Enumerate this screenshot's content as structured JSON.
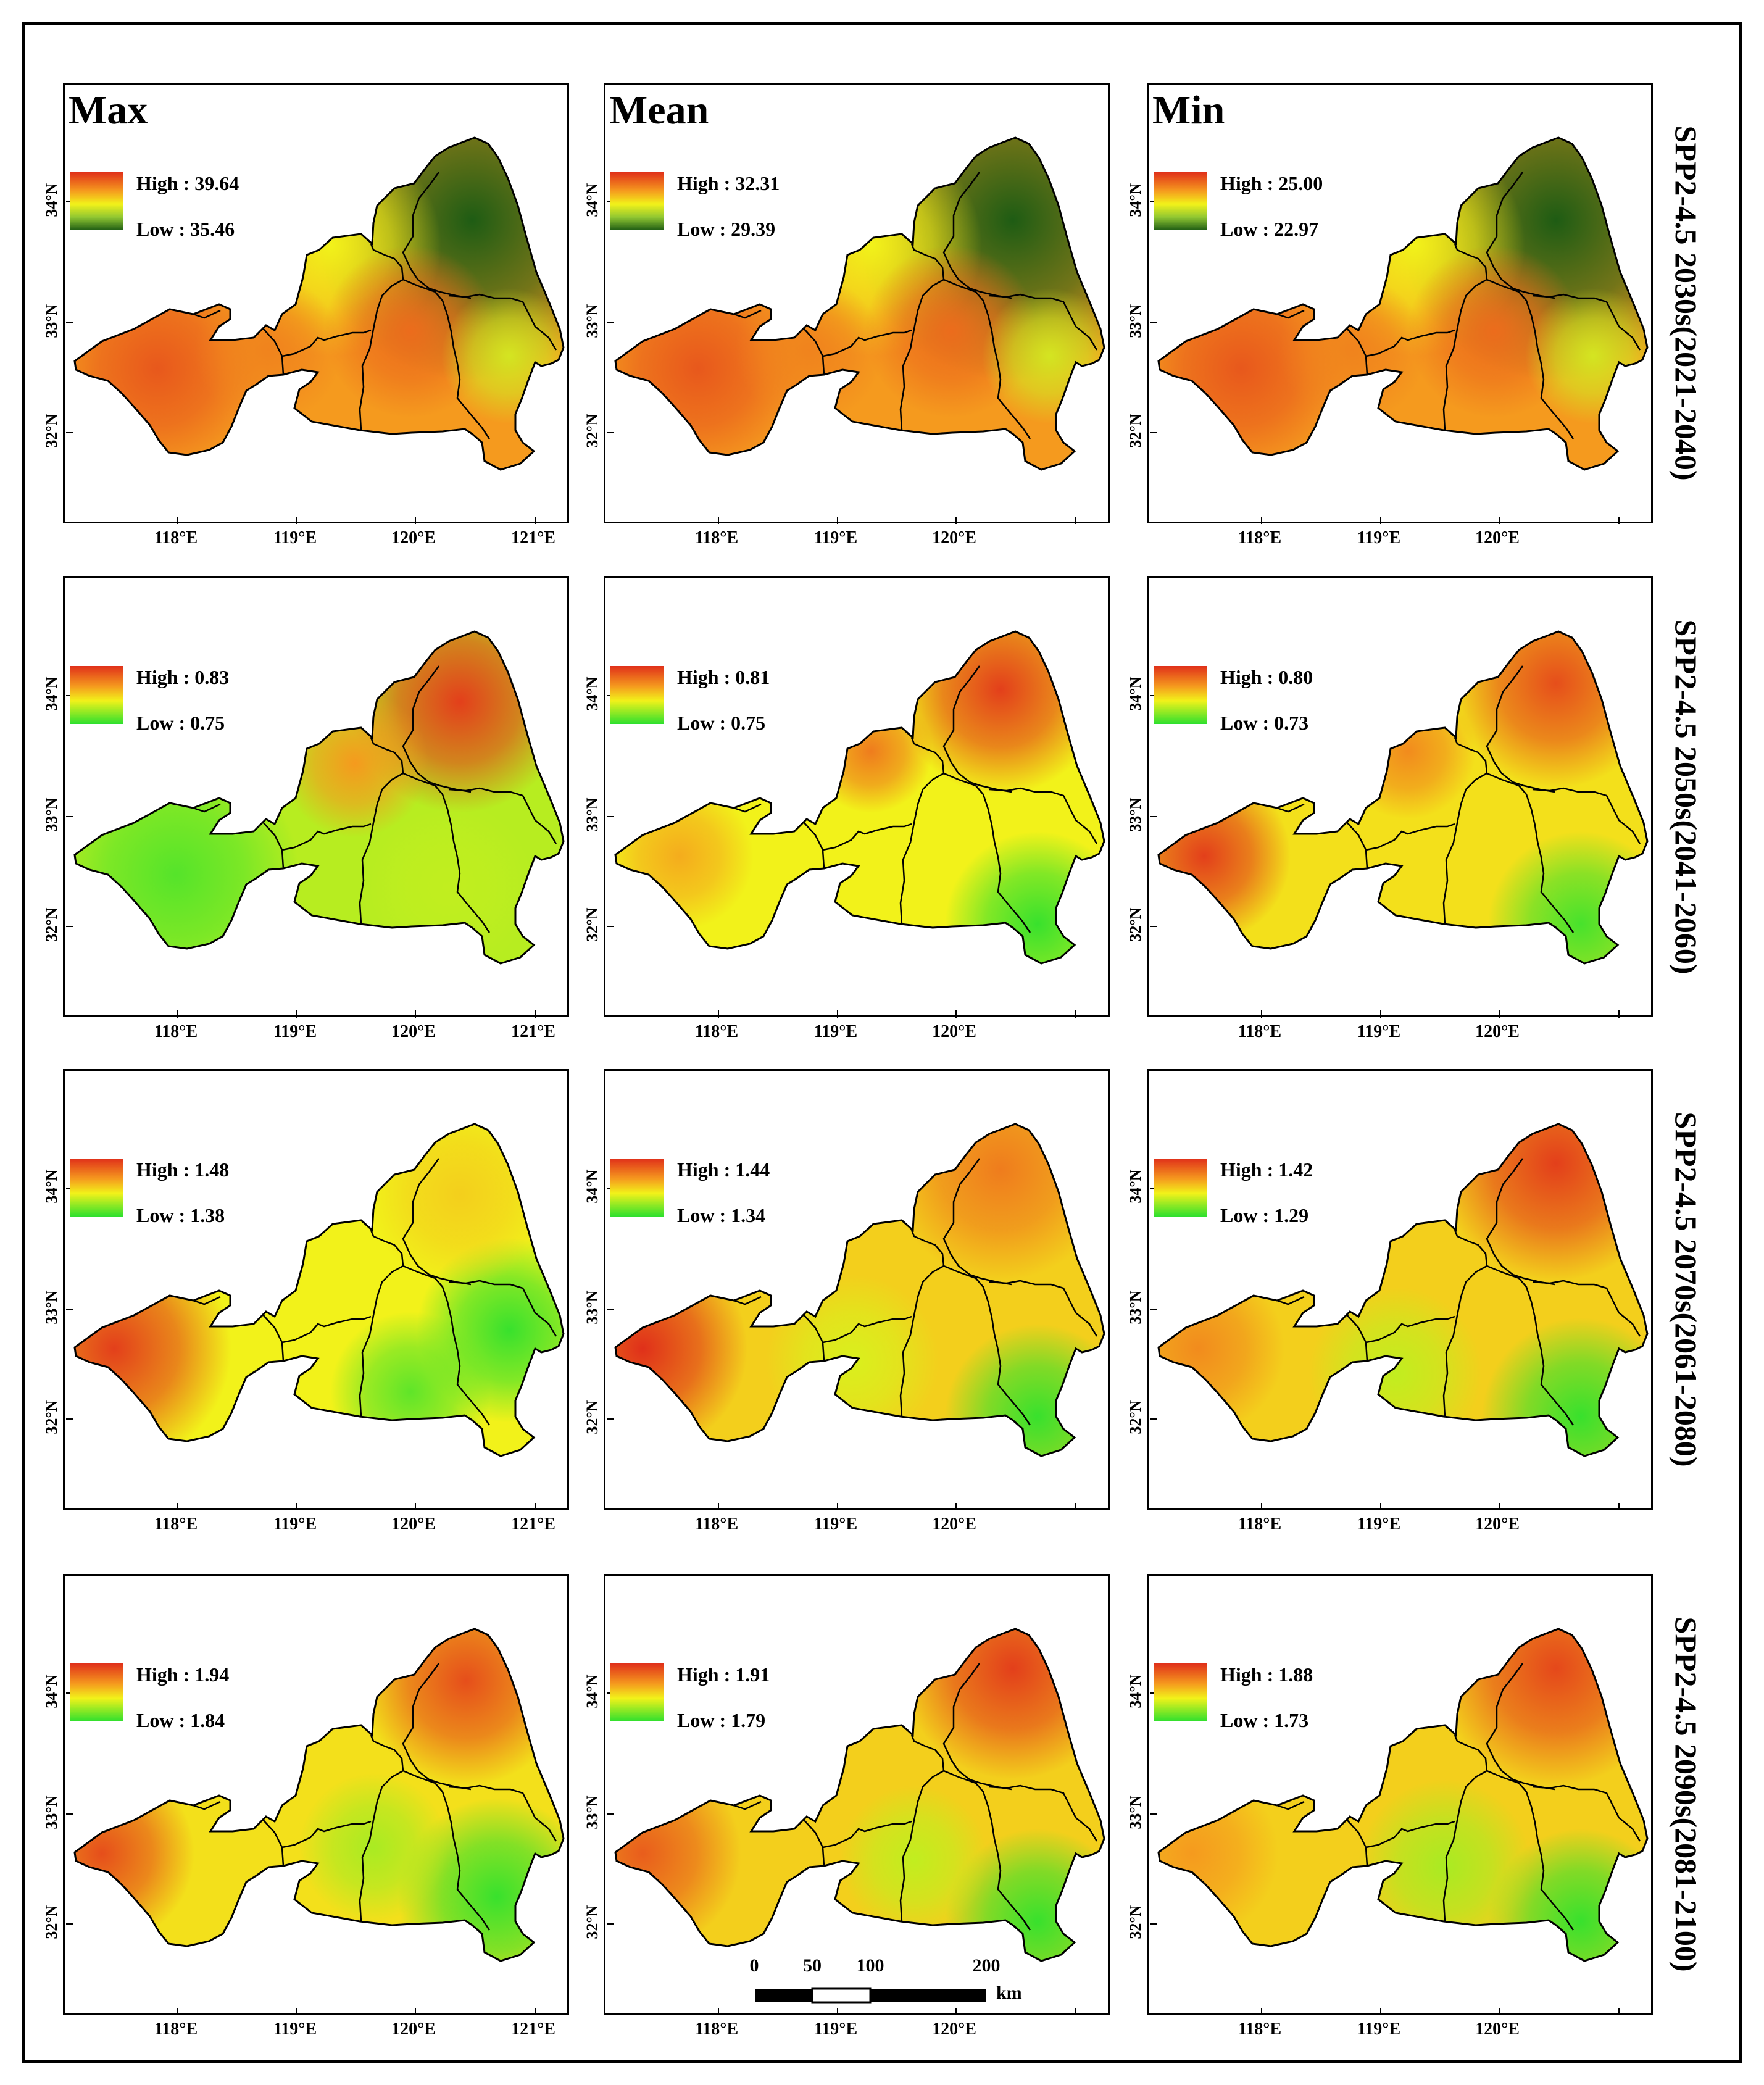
{
  "figure": {
    "column_titles": [
      "Max",
      "Mean",
      "Min"
    ],
    "row_titles": [
      "SPP2-4.5 2030s(2021-2040)",
      "SPP2-4.5 2050s(2041-2060)",
      "SPP2-4.5 2070s(2061-2080)",
      "SPP2-4.5 2090s(2081-2100)"
    ],
    "lat_ticks": [
      "32°N",
      "33°N",
      "34°N"
    ],
    "lon_ticks_full": [
      "118°E",
      "119°E",
      "120°E",
      "121°E"
    ],
    "lon_ticks": [
      "118°E",
      "119°E",
      "120°E"
    ],
    "scale_bar": {
      "ticks": [
        "0",
        "50",
        "100",
        "200"
      ],
      "unit": "km"
    }
  },
  "colors": {
    "green_dark": "#1e5c14",
    "green_bright": "#2ee02e",
    "yellow": "#f2f21a",
    "orange": "#f59a1e",
    "red": "#e02a1a",
    "boundary": "#000000"
  },
  "panels": [
    {
      "col": "Max",
      "row": 0,
      "high": "High : 39.64",
      "low": "Low : 35.46",
      "ramp": "temp"
    },
    {
      "col": "Mean",
      "row": 0,
      "high": "High : 32.31",
      "low": "Low : 29.39",
      "ramp": "temp"
    },
    {
      "col": "Min",
      "row": 0,
      "high": "High : 25.00",
      "low": "Low : 22.97",
      "ramp": "temp"
    },
    {
      "col": "Max",
      "row": 1,
      "high": "High : 0.83",
      "low": "Low : 0.75",
      "ramp": "change"
    },
    {
      "col": "Mean",
      "row": 1,
      "high": "High : 0.81",
      "low": "Low : 0.75",
      "ramp": "change"
    },
    {
      "col": "Min",
      "row": 1,
      "high": "High : 0.80",
      "low": "Low : 0.73",
      "ramp": "change"
    },
    {
      "col": "Max",
      "row": 2,
      "high": "High : 1.48",
      "low": "Low : 1.38",
      "ramp": "change"
    },
    {
      "col": "Mean",
      "row": 2,
      "high": "High : 1.44",
      "low": "Low : 1.34",
      "ramp": "change"
    },
    {
      "col": "Min",
      "row": 2,
      "high": "High : 1.42",
      "low": "Low : 1.29",
      "ramp": "change"
    },
    {
      "col": "Max",
      "row": 3,
      "high": "High : 1.94",
      "low": "Low : 1.84",
      "ramp": "change"
    },
    {
      "col": "Mean",
      "row": 3,
      "high": "High : 1.91",
      "low": "Low : 1.79",
      "ramp": "change"
    },
    {
      "col": "Min",
      "row": 3,
      "high": "High : 1.88",
      "low": "Low : 1.73",
      "ramp": "change"
    }
  ]
}
